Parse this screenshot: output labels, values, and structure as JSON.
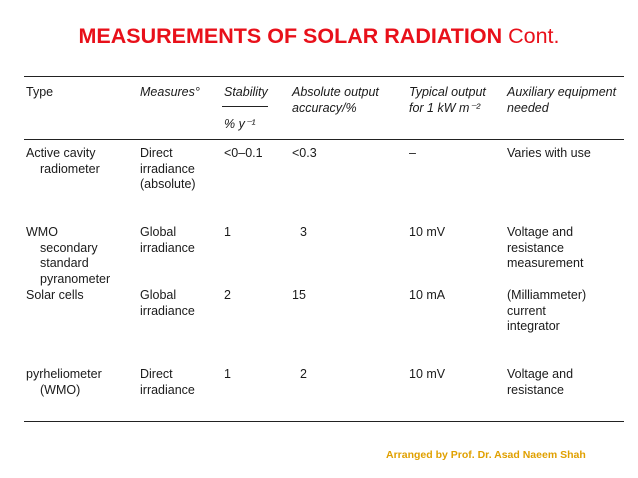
{
  "slide": {
    "title_bold": "MEASUREMENTS OF SOLAR RADIATION",
    "title_suffix": " Cont.",
    "footer": "Arranged by Prof. Dr. Asad Naeem Shah"
  },
  "table": {
    "headers": {
      "type": "Type",
      "measures": "Measures°",
      "stability": "Stability",
      "stability_unit": "% y⁻¹",
      "accuracy": "Absolute output\naccuracy/%",
      "typical_output": "Typical output\nfor 1 kW m⁻²",
      "auxiliary": "Auxiliary equipment\nneeded"
    },
    "rows": [
      {
        "type": "Active cavity\nradiometer",
        "measures": "Direct\nirradiance\n(absolute)",
        "stability": "<0–0.1",
        "accuracy": "<0.3",
        "typical_output": "–",
        "auxiliary": "Varies with use"
      },
      {
        "type": "WMO\nsecondary\nstandard\npyranometer",
        "measures": "Global\nirradiance",
        "stability": "1",
        "accuracy": "3",
        "typical_output": "10 mV",
        "auxiliary": "Voltage and\nresistance\nmeasurement"
      },
      {
        "type": "Solar cells",
        "measures": "Global\nirradiance",
        "stability": "2",
        "accuracy": "15",
        "typical_output": "10 mA",
        "auxiliary": "(Milliammeter)\ncurrent\nintegrator"
      },
      {
        "type": "pyrheliometer\n(WMO)",
        "measures": "Direct\nirradiance",
        "stability": "1",
        "accuracy": "2",
        "typical_output": "10 mV",
        "auxiliary": "Voltage and\nresistance"
      }
    ]
  },
  "colors": {
    "title": "#e8101a",
    "footer": "#e0a000",
    "text": "#1a1a1a",
    "rules": "#222222"
  }
}
